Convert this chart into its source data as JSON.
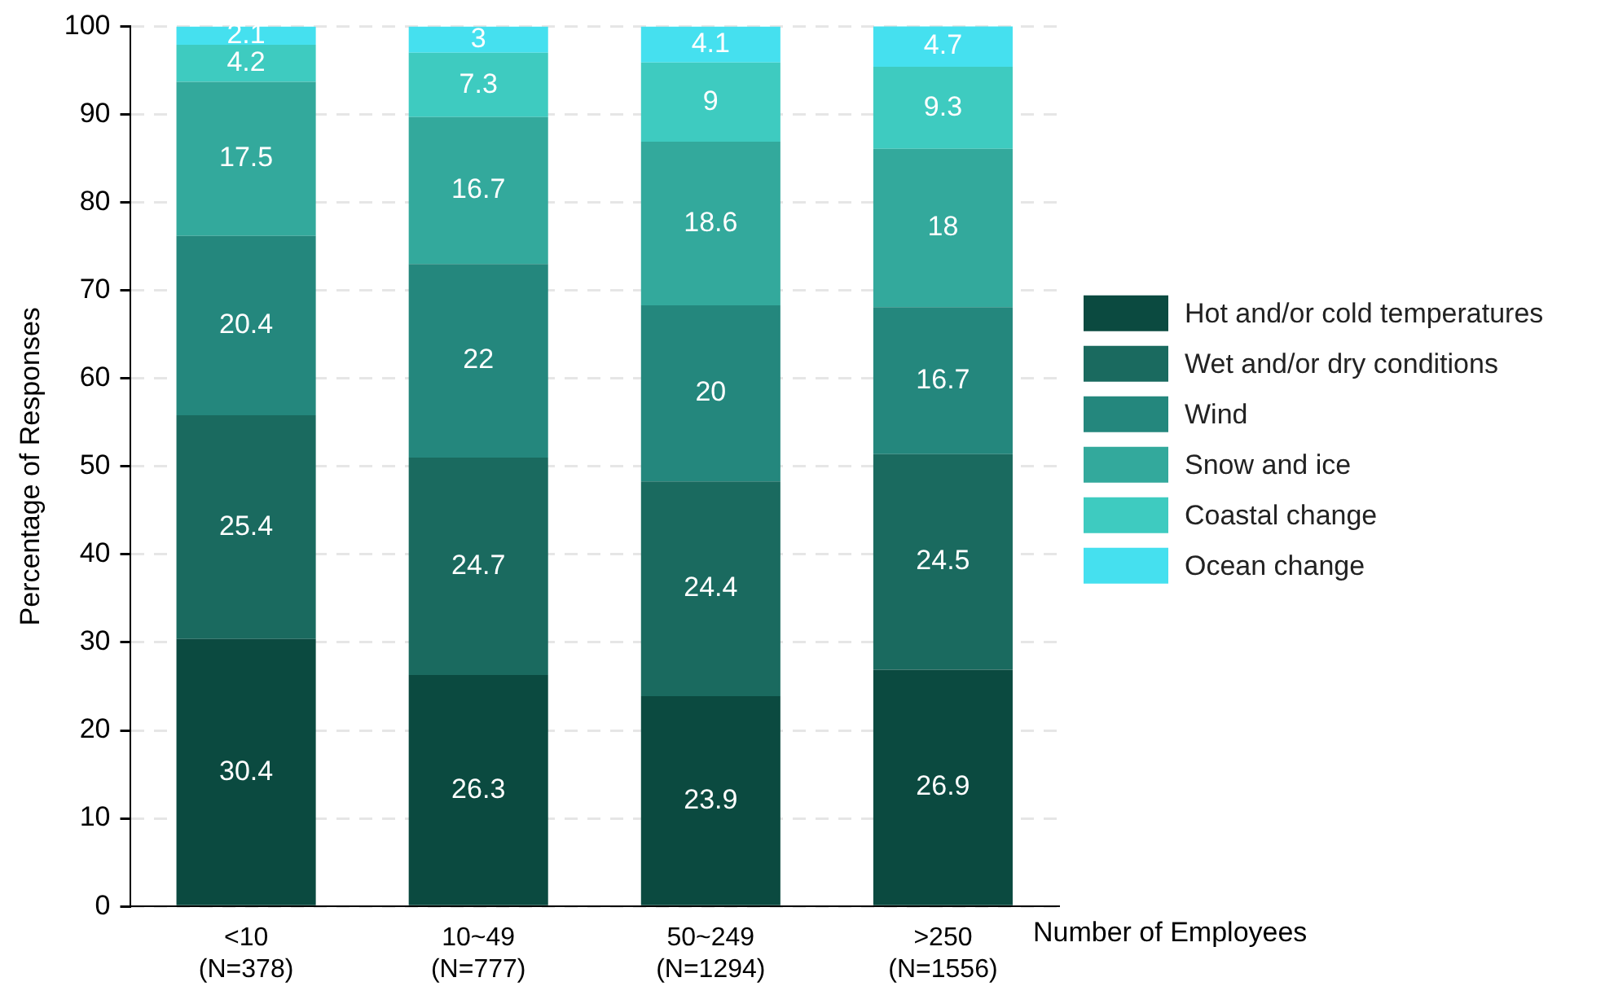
{
  "chart_data": {
    "type": "bar",
    "stacked": true,
    "xlabel": "Number of Employees",
    "ylabel": "Percentage of Responses",
    "categories": [
      "<10\n(N=378)",
      "10~49\n(N=777)",
      "50~249\n(N=1294)",
      ">250\n(N=1556)"
    ],
    "series": [
      {
        "name": "Hot and/or cold temperatures",
        "color": "#0b4a40",
        "values": [
          30.4,
          26.3,
          23.9,
          26.9
        ]
      },
      {
        "name": "Wet and/or dry conditions",
        "color": "#1a6a5f",
        "values": [
          25.4,
          24.7,
          24.4,
          24.5
        ]
      },
      {
        "name": "Wind",
        "color": "#24877d",
        "values": [
          20.4,
          22,
          20,
          16.7
        ]
      },
      {
        "name": "Snow and ice",
        "color": "#33a99c",
        "values": [
          17.5,
          16.7,
          18.6,
          18
        ]
      },
      {
        "name": "Coastal change",
        "color": "#3ecbc0",
        "values": [
          4.2,
          7.3,
          9,
          9.3
        ]
      },
      {
        "name": "Ocean change",
        "color": "#45e0ef",
        "values": [
          2.1,
          3,
          4.1,
          4.7
        ]
      }
    ],
    "ylim": [
      0,
      100
    ],
    "yticks": [
      0,
      10,
      20,
      30,
      40,
      50,
      60,
      70,
      80,
      90,
      100
    ],
    "grid": "y",
    "legend": "right",
    "data_labels": true
  }
}
